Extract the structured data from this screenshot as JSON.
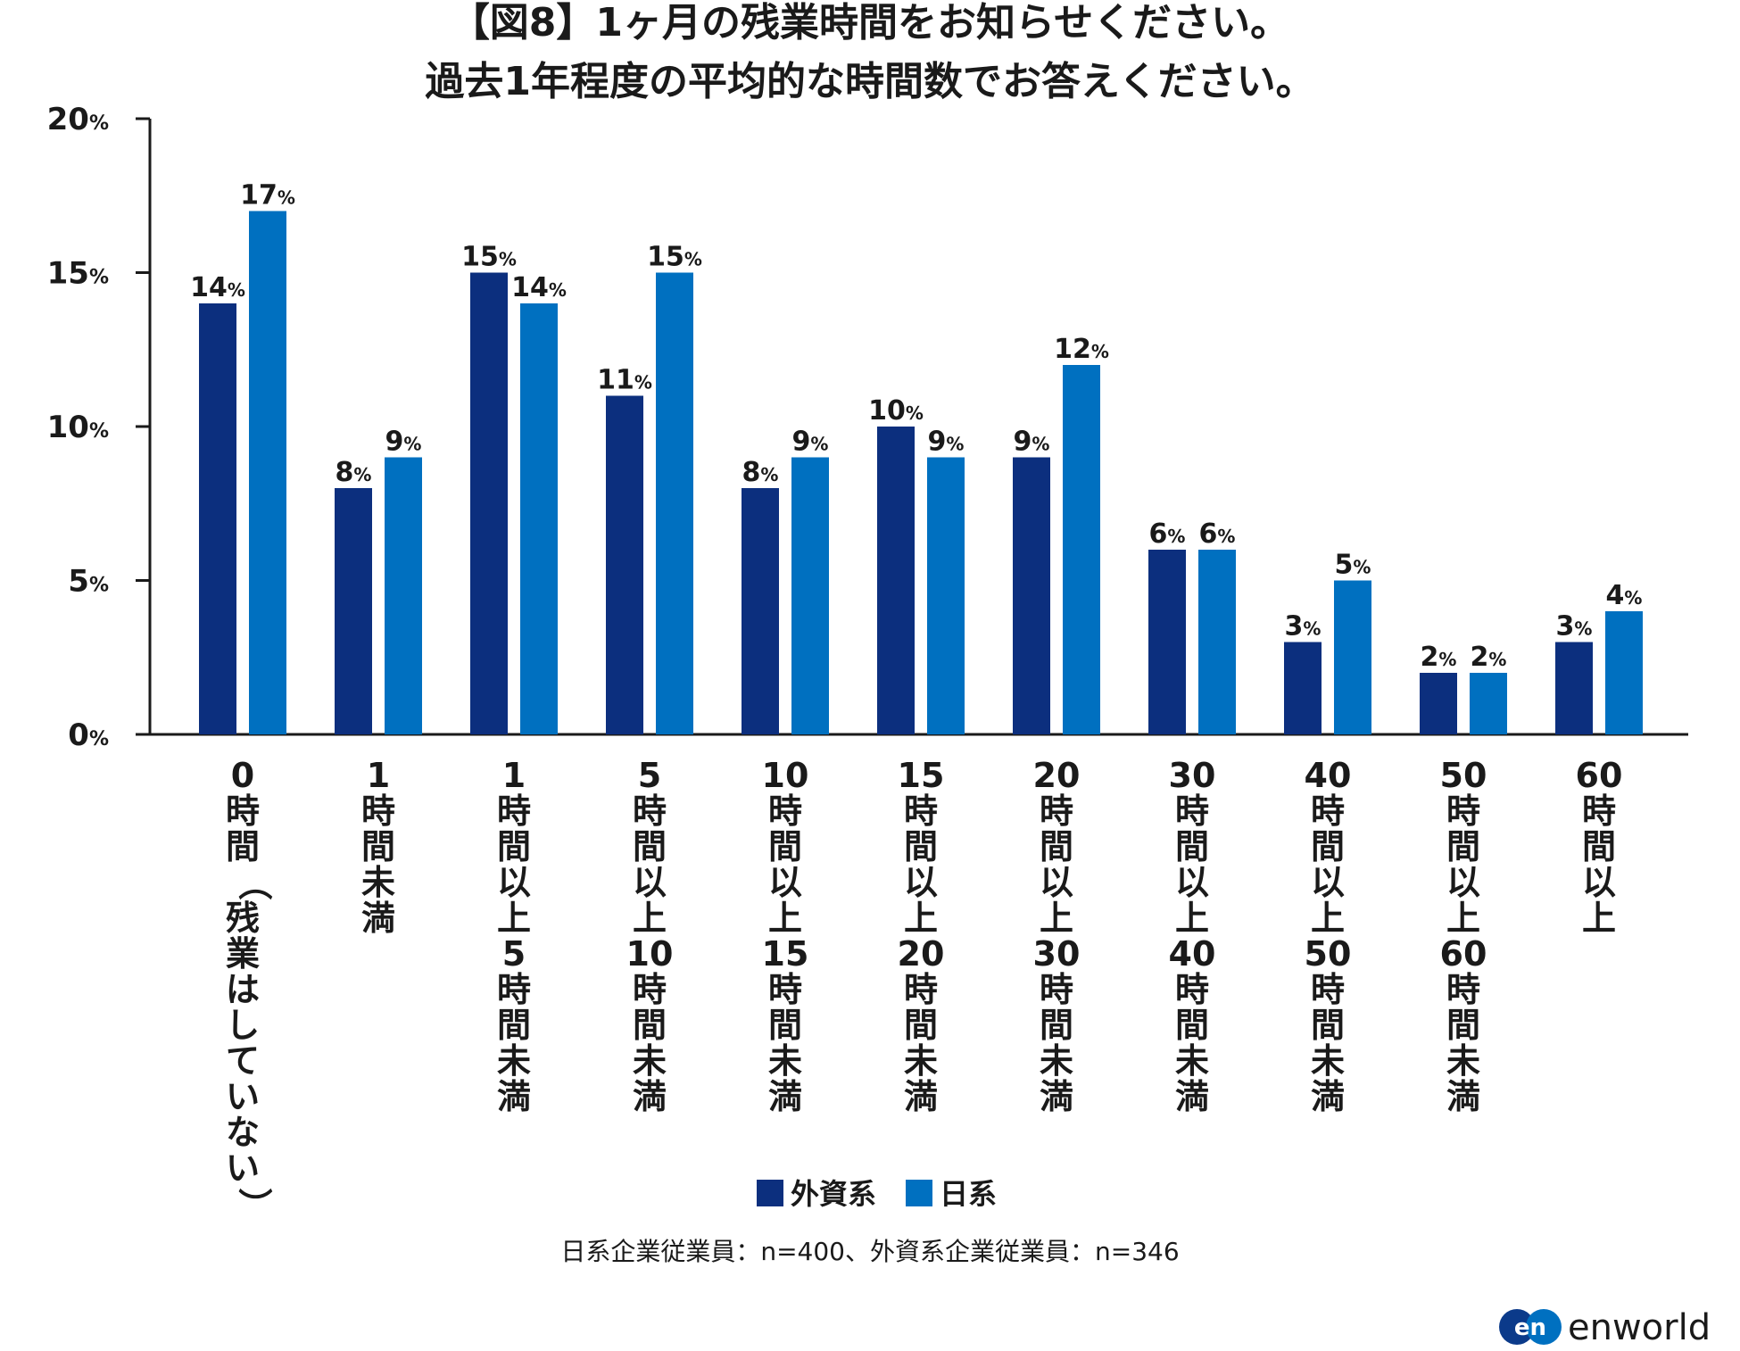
{
  "chart_data": {
    "type": "bar",
    "title": [
      "【図8】1ヶ月の残業時間をお知らせください。",
      "過去1年程度の平均的な時間数でお答えください。"
    ],
    "categories": [
      "0時間（残業はしていない）",
      "1時間未満",
      "1時間以上5時間未満",
      "5時間以上10時間未満",
      "10時間以上15時間未満",
      "15時間以上20時間未満",
      "20時間以上30時間未満",
      "30時間以上40時間未満",
      "40時間以上50時間未満",
      "50時間以上60時間未満",
      "60時間以上"
    ],
    "series": [
      {
        "name": "外資系",
        "color": "#0c2f7e",
        "values": [
          14,
          8,
          15,
          11,
          8,
          10,
          9,
          6,
          3,
          2,
          3
        ]
      },
      {
        "name": "日系",
        "color": "#0070c0",
        "values": [
          17,
          9,
          14,
          15,
          9,
          9,
          12,
          6,
          5,
          2,
          4
        ]
      }
    ],
    "yticks": [
      0,
      5,
      10,
      15,
      20
    ],
    "ylim": [
      0,
      20
    ],
    "unit": "%",
    "xlabel": "",
    "ylabel": "",
    "legend_position": "bottom",
    "note": "日系企業従業員：n=400、外資系企業従業員：n=346"
  },
  "logo": {
    "badge": "en",
    "text": "enworld"
  }
}
